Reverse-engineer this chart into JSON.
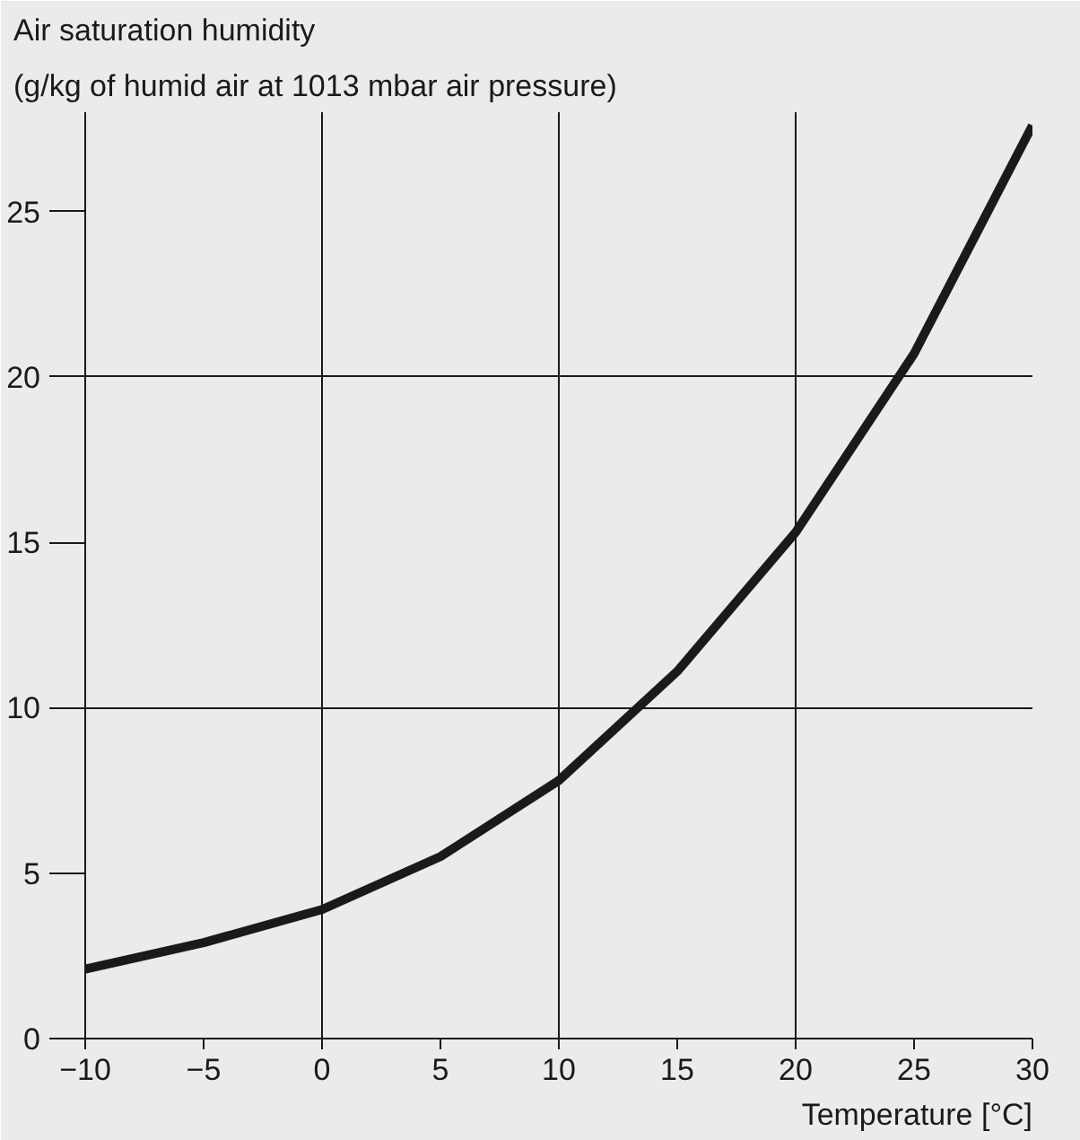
{
  "chart_data": {
    "type": "line",
    "title": "Air saturation humidity",
    "subtitle": "(g/kg of humid air at 1013 mbar air pressure)",
    "xlabel": "Temperature [°C]",
    "x": [
      -10,
      -5,
      0,
      5,
      10,
      15,
      20,
      25,
      30
    ],
    "series": [
      {
        "color": "#1a1a1a",
        "values": [
          2.1,
          2.9,
          3.9,
          5.5,
          7.8,
          11.1,
          15.3,
          20.7,
          27.6
        ]
      }
    ],
    "xlim": [
      -10,
      30
    ],
    "ylim": [
      0,
      28
    ],
    "xticks": [
      -10,
      -5,
      0,
      5,
      10,
      15,
      20,
      25,
      30
    ],
    "yticks": [
      0,
      5,
      10,
      15,
      20,
      25
    ],
    "grid": true,
    "marker": "none",
    "line_style": "solid"
  }
}
